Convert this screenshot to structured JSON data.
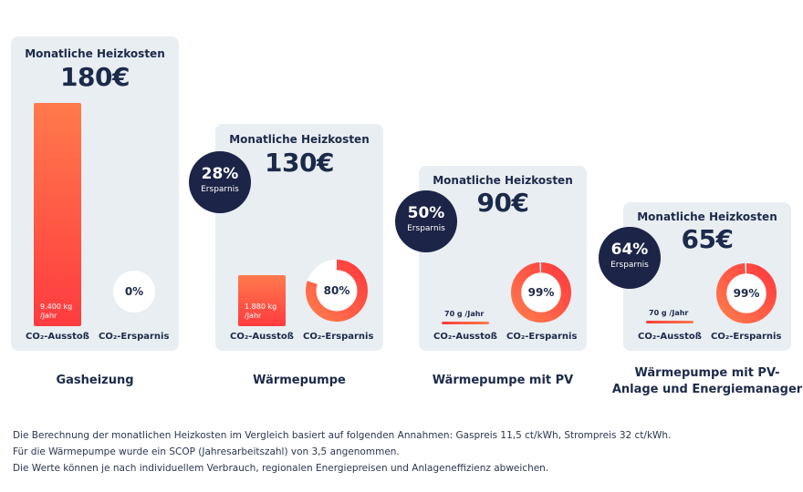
{
  "chart_data": {
    "type": "bar",
    "cost_label": "Monatliche Heizkosten",
    "savings_label": "Ersparnis",
    "emission_axis_label": "CO₂-Ausstoß",
    "co2_savings_axis_label": "CO₂-Ersparnis",
    "scenarios": [
      {
        "name": "Gasheizung",
        "monthly_cost": "180€",
        "cost_value": 180,
        "savings_pct": null,
        "savings_text": "",
        "emission_text": "9.400 kg /Jahr",
        "emission_kg_per_year": 9400,
        "co2_savings_pct": 0,
        "co2_savings_text": "0%"
      },
      {
        "name": "Wärmepumpe",
        "monthly_cost": "130€",
        "cost_value": 130,
        "savings_pct": 28,
        "savings_text": "28%",
        "emission_text": "1.880 kg /Jahr",
        "emission_kg_per_year": 1880,
        "co2_savings_pct": 80,
        "co2_savings_text": "80%"
      },
      {
        "name": "Wärmepumpe mit PV",
        "monthly_cost": "90€",
        "cost_value": 90,
        "savings_pct": 50,
        "savings_text": "50%",
        "emission_text": "70 g /Jahr",
        "emission_kg_per_year": 0.07,
        "co2_savings_pct": 99,
        "co2_savings_text": "99%"
      },
      {
        "name": "Wärmepumpe mit PV-Anlage und Energiemanager",
        "name_line1": "Wärmepumpe mit PV-",
        "name_line2": "Anlage und Energiemanager",
        "monthly_cost": "65€",
        "cost_value": 65,
        "savings_pct": 64,
        "savings_text": "64%",
        "emission_text": "70 g /Jahr",
        "emission_kg_per_year": 0.07,
        "co2_savings_pct": 99,
        "co2_savings_text": "99%"
      }
    ]
  },
  "footnotes": [
    "Die Berechnung der monatlichen Heizkosten im Vergleich basiert auf folgenden Annahmen: Gaspreis 11,5 ct/kWh, Strompreis 32 ct/kWh.",
    "Für die Wärmepumpe wurde ein SCOP (Jahresarbeitszahl) von 3,5 angenommen.",
    "Die Werte können je nach individuellem Verbrauch, regionalen Energiepreisen und Anlageneffizienz abweichen."
  ],
  "colors": {
    "card": "#e9eef3",
    "bar_top": "#ff7a4c",
    "bar_bottom": "#ff3b3f",
    "badge": "#1c2447",
    "text": "#1c2a4a"
  }
}
